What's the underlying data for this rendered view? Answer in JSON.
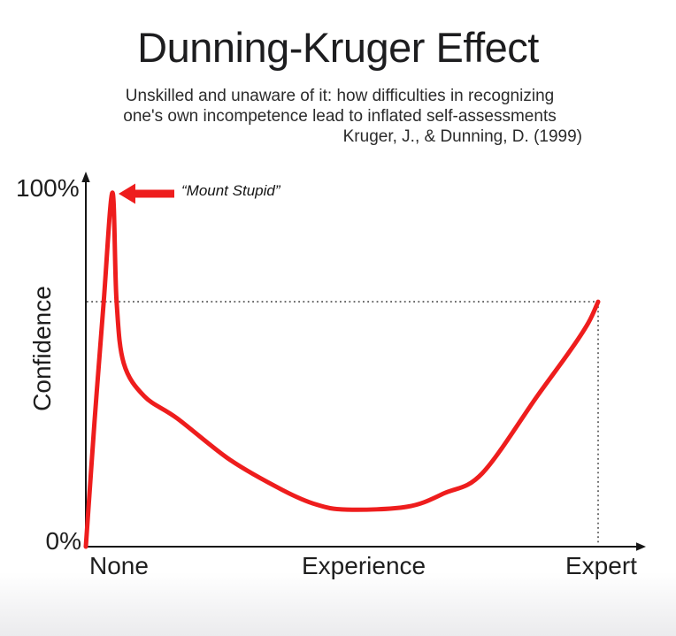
{
  "header": {
    "title": "Dunning-Kruger Effect",
    "subtitle_line1": "Unskilled and unaware of it: how difficulties in recognizing",
    "subtitle_line2": "one's own incompetence lead to inflated self-assessments",
    "citation": "Kruger, J., & Dunning, D. (1999)"
  },
  "chart": {
    "y_max_label": "100%",
    "y_min_label": "0%",
    "y_axis_title": "Confidence",
    "x_labels": {
      "none": "None",
      "mid": "Experience",
      "expert": "Expert"
    },
    "annotation_label": "“Mount Stupid”"
  },
  "colors": {
    "curve_red": "#ee1d1d",
    "axis": "#161616",
    "dotted_guide": "#4a4a4a",
    "text": "#1e1e1e"
  },
  "chart_data": {
    "type": "line",
    "title": "Dunning-Kruger Effect",
    "subtitle": "Unskilled and unaware of it: how difficulties in recognizing one's own incompetence lead to inflated self-assessments",
    "citation": "Kruger, J., & Dunning, D. (1999)",
    "xlabel": "Experience",
    "ylabel": "Confidence",
    "x_tick_labels": [
      "None",
      "Experience",
      "Expert"
    ],
    "y_tick_labels": [
      "0%",
      "100%"
    ],
    "ylim": [
      0,
      100
    ],
    "xlim_normalized": [
      0,
      1
    ],
    "grid": false,
    "legend": false,
    "annotations": [
      {
        "text": "“Mount Stupid”",
        "x": 0.052,
        "y": 99.3,
        "arrow": "red-left-arrow"
      }
    ],
    "guides": {
      "style": "dotted",
      "horizontal_at_pct": 68.7,
      "vertical_at_x_normalized": 1.0,
      "meaning": "expert confidence level"
    },
    "series": [
      {
        "name": "Confidence over Experience",
        "color": "#ee1d1d",
        "points": [
          [
            0.0,
            0.0
          ],
          [
            0.017,
            35.0
          ],
          [
            0.035,
            69.0
          ],
          [
            0.052,
            99.3
          ],
          [
            0.06,
            69.0
          ],
          [
            0.074,
            51.5
          ],
          [
            0.114,
            42.2
          ],
          [
            0.178,
            36.0
          ],
          [
            0.282,
            24.3
          ],
          [
            0.385,
            15.8
          ],
          [
            0.45,
            11.8
          ],
          [
            0.51,
            10.4
          ],
          [
            0.627,
            11.2
          ],
          [
            0.7,
            15.0
          ],
          [
            0.774,
            20.6
          ],
          [
            0.881,
            42.2
          ],
          [
            0.947,
            55.3
          ],
          [
            0.981,
            62.8
          ],
          [
            1.0,
            68.7
          ]
        ]
      }
    ]
  }
}
